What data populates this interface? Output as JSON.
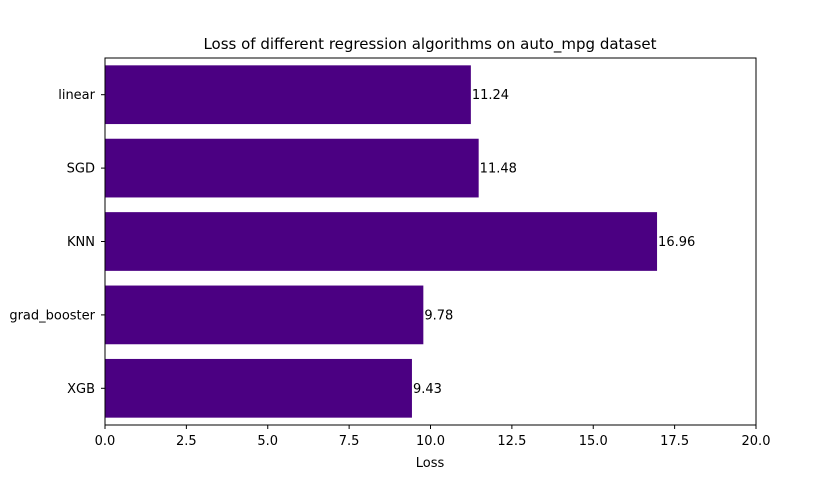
{
  "chart_data": {
    "type": "bar",
    "orientation": "horizontal",
    "title": "Loss of different regression algorithms on auto_mpg dataset",
    "xlabel": "Loss",
    "ylabel": "",
    "categories": [
      "linear",
      "SGD",
      "KNN",
      "grad_booster",
      "XGB"
    ],
    "values": [
      11.24,
      11.48,
      16.96,
      9.78,
      9.43
    ],
    "value_labels": [
      "11.24",
      "11.48",
      "16.96",
      "9.78",
      "9.43"
    ],
    "xlim": [
      0,
      20
    ],
    "xticks": [
      0.0,
      2.5,
      5.0,
      7.5,
      10.0,
      12.5,
      15.0,
      17.5,
      20.0
    ],
    "xtick_labels": [
      "0.0",
      "2.5",
      "5.0",
      "7.5",
      "10.0",
      "12.5",
      "15.0",
      "17.5",
      "20.0"
    ],
    "grid": false,
    "bar_color": "#4b0082"
  }
}
